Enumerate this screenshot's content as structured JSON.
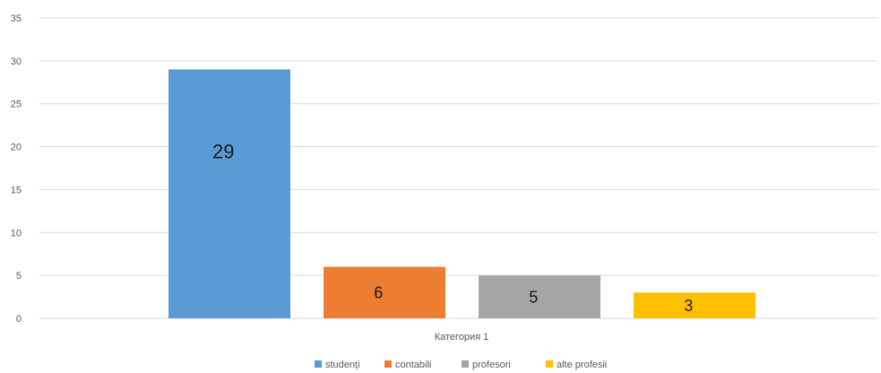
{
  "chart_data": {
    "type": "bar",
    "categories": [
      "Категория 1"
    ],
    "series": [
      {
        "name": "studenți",
        "values": [
          29
        ],
        "color": "#5b9bd5"
      },
      {
        "name": "contabili",
        "values": [
          6
        ],
        "color": "#ed7d31"
      },
      {
        "name": "profesori",
        "values": [
          5
        ],
        "color": "#a5a5a5"
      },
      {
        "name": "alte profesii",
        "values": [
          3
        ],
        "color": "#ffc000"
      }
    ],
    "data_labels": [
      "29",
      "6",
      "5",
      "3"
    ],
    "title": "",
    "xlabel": "",
    "ylabel": "",
    "ylim": [
      0,
      35
    ],
    "yticks": [
      0,
      5,
      10,
      15,
      20,
      25,
      30,
      35
    ],
    "grid": true,
    "legend_position": "bottom"
  }
}
